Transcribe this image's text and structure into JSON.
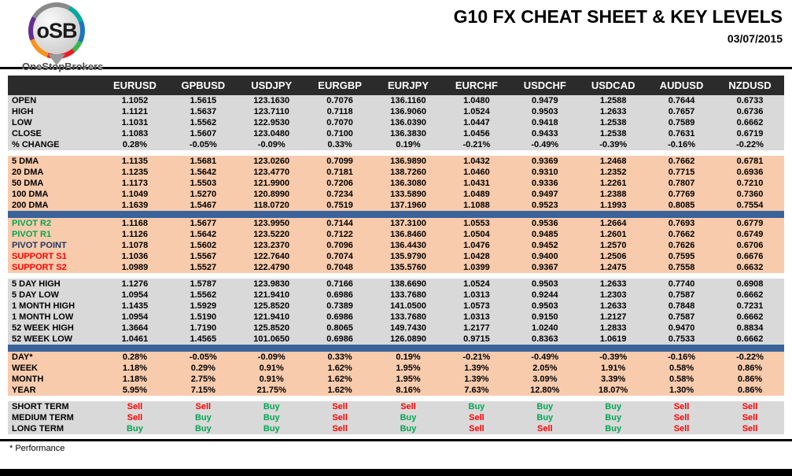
{
  "header": {
    "logo": {
      "abbr": "oSB",
      "brand": "OneStopBrokers"
    },
    "title": "G10 FX CHEAT SHEET & KEY LEVELS",
    "date": "03/07/2015"
  },
  "table": {
    "columns": [
      "EURUSD",
      "GPBUSD",
      "USDJPY",
      "EURGBP",
      "EURJPY",
      "EURCHF",
      "USDCHF",
      "USDCAD",
      "AUDUSD",
      "NZDUSD"
    ],
    "sections": [
      {
        "bg": "gray",
        "divider": null,
        "rows": [
          {
            "label": "OPEN",
            "style": "black",
            "values": [
              "1.1052",
              "1.5615",
              "123.1630",
              "0.7076",
              "136.1160",
              "1.0480",
              "0.9479",
              "1.2588",
              "0.7644",
              "0.6733"
            ]
          },
          {
            "label": "HIGH",
            "style": "black",
            "values": [
              "1.1121",
              "1.5637",
              "123.7110",
              "0.7118",
              "136.9060",
              "1.0524",
              "0.9503",
              "1.2633",
              "0.7657",
              "0.6736"
            ]
          },
          {
            "label": "LOW",
            "style": "black",
            "values": [
              "1.1031",
              "1.5562",
              "122.9530",
              "0.7070",
              "136.0390",
              "1.0447",
              "0.9418",
              "1.2538",
              "0.7589",
              "0.6662"
            ]
          },
          {
            "label": "CLOSE",
            "style": "black",
            "values": [
              "1.1083",
              "1.5607",
              "123.0480",
              "0.7100",
              "136.3830",
              "1.0456",
              "0.9433",
              "1.2538",
              "0.7631",
              "0.6719"
            ]
          },
          {
            "label": "% CHANGE",
            "style": "black",
            "values": [
              "0.28%",
              "-0.05%",
              "-0.09%",
              "0.33%",
              "0.19%",
              "-0.21%",
              "-0.49%",
              "-0.39%",
              "-0.16%",
              "-0.22%"
            ]
          }
        ]
      },
      {
        "bg": "peach",
        "divider": "white",
        "rows": [
          {
            "label": "5 DMA",
            "style": "black",
            "values": [
              "1.1135",
              "1.5681",
              "123.0260",
              "0.7099",
              "136.9890",
              "1.0432",
              "0.9369",
              "1.2468",
              "0.7662",
              "0.6781"
            ]
          },
          {
            "label": "20 DMA",
            "style": "black",
            "values": [
              "1.1235",
              "1.5642",
              "123.4770",
              "0.7181",
              "138.7260",
              "1.0460",
              "0.9310",
              "1.2352",
              "0.7715",
              "0.6936"
            ]
          },
          {
            "label": "50 DMA",
            "style": "black",
            "values": [
              "1.1173",
              "1.5503",
              "121.9900",
              "0.7206",
              "136.3080",
              "1.0431",
              "0.9336",
              "1.2261",
              "0.7807",
              "0.7210"
            ]
          },
          {
            "label": "100 DMA",
            "style": "black",
            "values": [
              "1.1049",
              "1.5270",
              "120.8990",
              "0.7234",
              "133.5890",
              "1.0489",
              "0.9497",
              "1.2388",
              "0.7769",
              "0.7360"
            ]
          },
          {
            "label": "200 DMA",
            "style": "black",
            "values": [
              "1.1639",
              "1.5467",
              "118.0720",
              "0.7519",
              "137.1960",
              "1.1088",
              "0.9523",
              "1.1993",
              "0.8085",
              "0.7554"
            ]
          }
        ]
      },
      {
        "bg": "peach",
        "divider": "blue",
        "rows": [
          {
            "label": "PIVOT R2",
            "style": "green",
            "values": [
              "1.1168",
              "1.5677",
              "123.9950",
              "0.7144",
              "137.3100",
              "1.0553",
              "0.9536",
              "1.2664",
              "0.7693",
              "0.6779"
            ]
          },
          {
            "label": "PIVOT R1",
            "style": "green",
            "values": [
              "1.1126",
              "1.5642",
              "123.5220",
              "0.7122",
              "136.8460",
              "1.0504",
              "0.9485",
              "1.2601",
              "0.7662",
              "0.6749"
            ]
          },
          {
            "label": "PIVOT POINT",
            "style": "navy",
            "values": [
              "1.1078",
              "1.5602",
              "123.2370",
              "0.7096",
              "136.4430",
              "1.0476",
              "0.9452",
              "1.2570",
              "0.7626",
              "0.6706"
            ]
          },
          {
            "label": "SUPPORT S1",
            "style": "red",
            "values": [
              "1.1036",
              "1.5567",
              "122.7640",
              "0.7074",
              "135.9790",
              "1.0428",
              "0.9400",
              "1.2506",
              "0.7595",
              "0.6676"
            ]
          },
          {
            "label": "SUPPORT S2",
            "style": "red",
            "values": [
              "1.0989",
              "1.5527",
              "122.4790",
              "0.7048",
              "135.5760",
              "1.0399",
              "0.9367",
              "1.2475",
              "0.7558",
              "0.6632"
            ]
          }
        ]
      },
      {
        "bg": "gray",
        "divider": "white",
        "rows": [
          {
            "label": "5 DAY HIGH",
            "style": "black",
            "values": [
              "1.1276",
              "1.5787",
              "123.9830",
              "0.7166",
              "138.6690",
              "1.0524",
              "0.9503",
              "1.2633",
              "0.7740",
              "0.6908"
            ]
          },
          {
            "label": "5 DAY LOW",
            "style": "black",
            "values": [
              "1.0954",
              "1.5562",
              "121.9410",
              "0.6986",
              "133.7680",
              "1.0313",
              "0.9244",
              "1.2303",
              "0.7587",
              "0.6662"
            ]
          },
          {
            "label": "1 MONTH HIGH",
            "style": "black",
            "values": [
              "1.1435",
              "1.5929",
              "125.8520",
              "0.7389",
              "141.0500",
              "1.0573",
              "0.9503",
              "1.2633",
              "0.7848",
              "0.7231"
            ]
          },
          {
            "label": "1 MONTH LOW",
            "style": "black",
            "values": [
              "1.0954",
              "1.5190",
              "121.9410",
              "0.6986",
              "133.7680",
              "1.0313",
              "0.9150",
              "1.2127",
              "0.7587",
              "0.6662"
            ]
          },
          {
            "label": "52 WEEK HIGH",
            "style": "black",
            "values": [
              "1.3664",
              "1.7190",
              "125.8520",
              "0.8065",
              "149.7430",
              "1.2177",
              "1.0240",
              "1.2833",
              "0.9470",
              "0.8834"
            ]
          },
          {
            "label": "52 WEEK LOW",
            "style": "black",
            "values": [
              "1.0461",
              "1.4565",
              "101.0650",
              "0.6986",
              "126.0890",
              "0.9715",
              "0.8363",
              "1.0619",
              "0.7533",
              "0.6662"
            ]
          }
        ]
      },
      {
        "bg": "peach",
        "divider": "blue",
        "rows": [
          {
            "label": "DAY*",
            "style": "black",
            "values": [
              "0.28%",
              "-0.05%",
              "-0.09%",
              "0.33%",
              "0.19%",
              "-0.21%",
              "-0.49%",
              "-0.39%",
              "-0.16%",
              "-0.22%"
            ]
          },
          {
            "label": "WEEK",
            "style": "black",
            "values": [
              "1.18%",
              "0.29%",
              "0.91%",
              "1.62%",
              "1.95%",
              "1.39%",
              "2.05%",
              "1.91%",
              "0.58%",
              "0.86%"
            ]
          },
          {
            "label": "MONTH",
            "style": "black",
            "values": [
              "1.18%",
              "2.75%",
              "0.91%",
              "1.62%",
              "1.95%",
              "1.39%",
              "3.09%",
              "3.39%",
              "0.58%",
              "0.86%"
            ]
          },
          {
            "label": "YEAR",
            "style": "black",
            "values": [
              "5.95%",
              "7.15%",
              "21.75%",
              "1.62%",
              "8.16%",
              "7.63%",
              "12.80%",
              "18.07%",
              "1.30%",
              "0.86%"
            ]
          }
        ]
      },
      {
        "bg": "gray",
        "divider": "white",
        "rows": [
          {
            "label": "SHORT TERM",
            "style": "black",
            "values": [
              "Sell",
              "Sell",
              "Buy",
              "Sell",
              "Sell",
              "Buy",
              "Buy",
              "Buy",
              "Sell",
              "Sell"
            ]
          },
          {
            "label": "MEDIUM TERM",
            "style": "black",
            "values": [
              "Sell",
              "Buy",
              "Buy",
              "Sell",
              "Buy",
              "Sell",
              "Buy",
              "Buy",
              "Sell",
              "Sell"
            ]
          },
          {
            "label": "LONG TERM",
            "style": "black",
            "values": [
              "Buy",
              "Buy",
              "Buy",
              "Sell",
              "Buy",
              "Sell",
              "Sell",
              "Buy",
              "Sell",
              "Sell"
            ]
          }
        ]
      }
    ]
  },
  "footer": {
    "note": "* Performance"
  },
  "colors": {
    "header_bg": "#2b2b2b",
    "section_gray": "#d9d9d9",
    "section_peach": "#f8cbad",
    "divider_blue": "#3a639b",
    "buy_green": "#00a651",
    "sell_red": "#ff0000",
    "pivot_navy": "#1f3864"
  }
}
